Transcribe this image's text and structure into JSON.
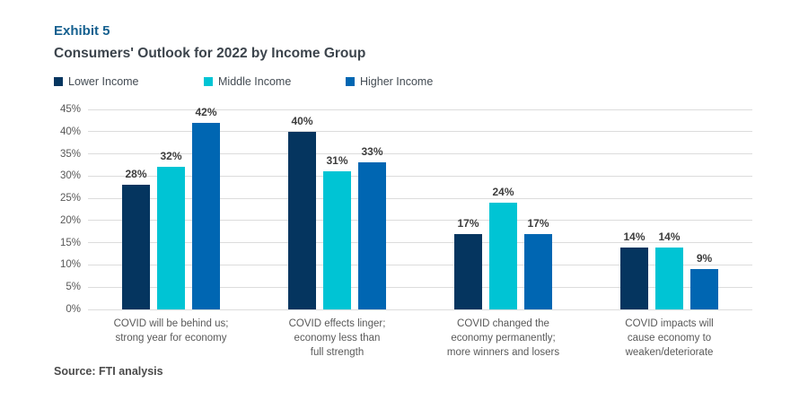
{
  "header": {
    "exhibit_label": "Exhibit 5",
    "title": "Consumers' Outlook for 2022 by Income Group"
  },
  "source_line": "Source: FTI analysis",
  "colors": {
    "exhibit_text": "#15608F",
    "title_text": "#3C444C",
    "axis_text": "#595959",
    "gridline": "#DCDCDC",
    "value_label_text": "#3D3D3D",
    "lower_income": "#05355F",
    "middle_income": "#00C4D4",
    "higher_income": "#0066B2"
  },
  "chart_data": {
    "type": "bar",
    "title": "Consumers' Outlook for 2022 by Income Group",
    "categories": [
      "COVID will be behind us;\nstrong year for economy",
      "COVID effects linger;\neconomy less than\nfull strength",
      "COVID changed the\neconomy permanently;\nmore winners and losers",
      "COVID impacts will\ncause economy to\nweaken/deteriorate"
    ],
    "series": [
      {
        "name": "Lower Income",
        "color": "#05355F",
        "values": [
          28,
          40,
          17,
          14
        ]
      },
      {
        "name": "Middle Income",
        "color": "#00C4D4",
        "values": [
          32,
          31,
          24,
          14
        ]
      },
      {
        "name": "Higher Income",
        "color": "#0066B2",
        "values": [
          42,
          33,
          17,
          9
        ]
      }
    ],
    "ylim": [
      0,
      45
    ],
    "yticks": [
      "0%",
      "5%",
      "10%",
      "15%",
      "20%",
      "25%",
      "30%",
      "35%",
      "40%",
      "45%"
    ],
    "value_label_suffix": "%",
    "grid": true,
    "legend_position": "top"
  }
}
